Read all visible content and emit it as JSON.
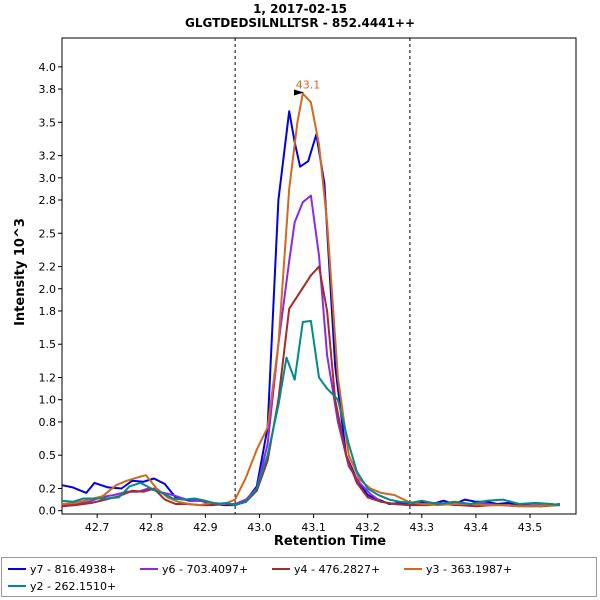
{
  "chart_data": {
    "type": "line",
    "title": "1, 2017-02-15",
    "subtitle": "GLGTDEDSILNLLTSR - 852.4441++",
    "xlabel": "Retention Time",
    "ylabel": "Intensity 10^3",
    "xlim": [
      42.635,
      43.585
    ],
    "ylim": [
      -0.03,
      4.26
    ],
    "x_ticks": [
      "42.7",
      "42.8",
      "42.9",
      "43.0",
      "43.1",
      "43.2",
      "43.3",
      "43.4",
      "43.5"
    ],
    "y_ticks": [
      "0.0",
      "0.2",
      "0.5",
      "0.8",
      "1.0",
      "1.2",
      "1.5",
      "1.8",
      "2.0",
      "2.2",
      "2.5",
      "2.8",
      "3.0",
      "3.2",
      "3.5",
      "3.8",
      "4.0"
    ],
    "boundaries": [
      42.955,
      43.278
    ],
    "annotation": {
      "text": "43.1",
      "x": 43.086,
      "y": 3.76
    },
    "legend_position": "bottom",
    "series": [
      {
        "name": "y7 - 816.4938+",
        "color": "#0000e0",
        "x": [
          42.635,
          42.655,
          42.68,
          42.695,
          42.72,
          42.745,
          42.765,
          42.785,
          42.805,
          42.825,
          42.845,
          42.87,
          42.89,
          42.915,
          42.935,
          42.955,
          42.975,
          42.995,
          43.015,
          43.035,
          43.055,
          43.065,
          43.075,
          43.09,
          43.105,
          43.12,
          43.14,
          43.16,
          43.18,
          43.2,
          43.22,
          43.24,
          43.26,
          43.28,
          43.3,
          43.32,
          43.34,
          43.36,
          43.38,
          43.4,
          43.42,
          43.44,
          43.46,
          43.48,
          43.5,
          43.52,
          43.54,
          43.555
        ],
        "y": [
          0.23,
          0.21,
          0.16,
          0.25,
          0.21,
          0.2,
          0.27,
          0.26,
          0.29,
          0.24,
          0.12,
          0.09,
          0.09,
          0.06,
          0.05,
          0.05,
          0.09,
          0.22,
          0.75,
          2.8,
          3.6,
          3.32,
          3.1,
          3.15,
          3.39,
          2.95,
          1.3,
          0.5,
          0.28,
          0.14,
          0.1,
          0.06,
          0.07,
          0.05,
          0.08,
          0.06,
          0.09,
          0.06,
          0.1,
          0.08,
          0.08,
          0.06,
          0.07,
          0.05,
          0.05,
          0.04,
          0.05,
          0.06
        ]
      },
      {
        "name": "y6 - 703.4097+",
        "color": "#8a2be2",
        "x": [
          42.635,
          42.66,
          42.685,
          42.705,
          42.73,
          42.755,
          42.775,
          42.795,
          42.815,
          42.84,
          42.865,
          42.89,
          42.915,
          42.935,
          42.955,
          42.975,
          42.995,
          43.015,
          43.035,
          43.055,
          43.065,
          43.08,
          43.095,
          43.11,
          43.125,
          43.145,
          43.165,
          43.185,
          43.205,
          43.225,
          43.25,
          43.275,
          43.3,
          43.33,
          43.36,
          43.39,
          43.42,
          43.45,
          43.48,
          43.51,
          43.54,
          43.555
        ],
        "y": [
          0.05,
          0.06,
          0.08,
          0.12,
          0.14,
          0.17,
          0.17,
          0.2,
          0.17,
          0.14,
          0.1,
          0.09,
          0.07,
          0.06,
          0.06,
          0.1,
          0.2,
          0.6,
          1.5,
          2.25,
          2.6,
          2.78,
          2.84,
          2.3,
          1.4,
          0.8,
          0.4,
          0.25,
          0.15,
          0.08,
          0.06,
          0.05,
          0.06,
          0.07,
          0.05,
          0.06,
          0.06,
          0.05,
          0.04,
          0.05,
          0.05,
          0.06
        ]
      },
      {
        "name": "y4 - 476.2827+",
        "color": "#a52a2a",
        "x": [
          42.635,
          42.66,
          42.69,
          42.715,
          42.74,
          42.765,
          42.785,
          42.805,
          42.825,
          42.845,
          42.865,
          42.89,
          42.915,
          42.935,
          42.955,
          42.975,
          42.995,
          43.015,
          43.035,
          43.055,
          43.075,
          43.095,
          43.11,
          43.125,
          43.14,
          43.16,
          43.18,
          43.2,
          43.225,
          43.25,
          43.28,
          43.31,
          43.34,
          43.37,
          43.4,
          43.43,
          43.46,
          43.49,
          43.52,
          43.555
        ],
        "y": [
          0.04,
          0.05,
          0.07,
          0.1,
          0.13,
          0.18,
          0.17,
          0.2,
          0.1,
          0.06,
          0.06,
          0.05,
          0.05,
          0.06,
          0.05,
          0.08,
          0.18,
          0.45,
          1.0,
          1.82,
          1.97,
          2.12,
          2.2,
          1.8,
          1.0,
          0.5,
          0.25,
          0.12,
          0.08,
          0.06,
          0.05,
          0.05,
          0.06,
          0.05,
          0.04,
          0.05,
          0.05,
          0.04,
          0.04,
          0.05
        ]
      },
      {
        "name": "y3 - 363.1987+",
        "color": "#d2691e",
        "x": [
          42.635,
          42.66,
          42.685,
          42.71,
          42.735,
          42.755,
          42.775,
          42.79,
          42.81,
          42.83,
          42.85,
          42.87,
          42.89,
          42.91,
          42.935,
          42.955,
          42.975,
          42.995,
          43.015,
          43.035,
          43.055,
          43.07,
          43.08,
          43.095,
          43.11,
          43.125,
          43.145,
          43.165,
          43.185,
          43.205,
          43.225,
          43.25,
          43.275,
          43.3,
          43.33,
          43.36,
          43.39,
          43.42,
          43.45,
          43.48,
          43.51,
          43.54,
          43.555
        ],
        "y": [
          0.06,
          0.07,
          0.1,
          0.13,
          0.23,
          0.27,
          0.3,
          0.32,
          0.2,
          0.12,
          0.08,
          0.06,
          0.05,
          0.07,
          0.06,
          0.1,
          0.3,
          0.55,
          0.75,
          1.5,
          2.9,
          3.5,
          3.76,
          3.68,
          3.3,
          2.6,
          1.2,
          0.5,
          0.28,
          0.2,
          0.16,
          0.14,
          0.08,
          0.06,
          0.05,
          0.06,
          0.06,
          0.05,
          0.05,
          0.04,
          0.04,
          0.05,
          0.05
        ]
      },
      {
        "name": "y2 - 262.1510+",
        "color": "#008b8b",
        "x": [
          42.635,
          42.655,
          42.675,
          42.695,
          42.715,
          42.74,
          42.76,
          42.78,
          42.8,
          42.82,
          42.84,
          42.86,
          42.88,
          42.9,
          42.92,
          42.94,
          42.955,
          42.975,
          42.995,
          43.015,
          43.035,
          43.05,
          43.065,
          43.08,
          43.095,
          43.11,
          43.125,
          43.145,
          43.165,
          43.18,
          43.2,
          43.22,
          43.24,
          43.26,
          43.28,
          43.3,
          43.33,
          43.36,
          43.39,
          43.42,
          43.45,
          43.48,
          43.51,
          43.54,
          43.555
        ],
        "y": [
          0.09,
          0.08,
          0.11,
          0.11,
          0.11,
          0.12,
          0.22,
          0.25,
          0.2,
          0.16,
          0.11,
          0.1,
          0.11,
          0.09,
          0.06,
          0.07,
          0.05,
          0.08,
          0.2,
          0.5,
          0.95,
          1.38,
          1.18,
          1.7,
          1.71,
          1.2,
          1.1,
          1.0,
          0.6,
          0.35,
          0.2,
          0.14,
          0.1,
          0.08,
          0.07,
          0.09,
          0.06,
          0.08,
          0.06,
          0.09,
          0.1,
          0.06,
          0.07,
          0.06,
          0.05
        ]
      }
    ]
  }
}
